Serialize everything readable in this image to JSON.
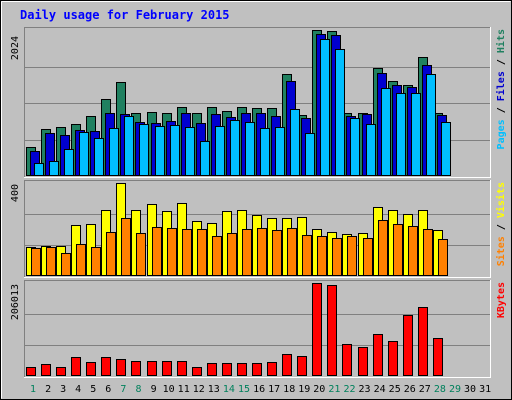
{
  "chart_data": {
    "type": "bar",
    "title": "Daily usage for February 2015",
    "categories": [
      "1",
      "2",
      "3",
      "4",
      "5",
      "6",
      "7",
      "8",
      "9",
      "10",
      "11",
      "12",
      "13",
      "14",
      "15",
      "16",
      "17",
      "18",
      "19",
      "20",
      "21",
      "22",
      "23",
      "24",
      "25",
      "26",
      "27",
      "28",
      "29",
      "30",
      "31"
    ],
    "panels": [
      {
        "id": "top",
        "max_label": "2024",
        "ymax": 2024,
        "right_labels": [
          {
            "text": "Pages",
            "color": "#00bfff"
          },
          {
            "text": " / ",
            "color": "#000000"
          },
          {
            "text": "Files",
            "color": "#0000d0"
          },
          {
            "text": " / ",
            "color": "#000000"
          },
          {
            "text": "Hits",
            "color": "#208060"
          }
        ],
        "series": [
          {
            "name": "Hits",
            "color": "#208060",
            "values": [
              403,
              652,
              674,
              720,
              837,
              1063,
              1309,
              877,
              891,
              867,
              961,
              880,
              963,
              904,
              961,
              941,
              947,
              1418,
              843,
              2024,
              2007,
              880,
              869,
              1493,
              1315,
              1264,
              1654,
              867,
              0,
              0,
              0
            ]
          },
          {
            "name": "Files",
            "color": "#0000d0",
            "values": [
              352,
              600,
              566,
              634,
              623,
              873,
              855,
              752,
              735,
              760,
              867,
              741,
              864,
              818,
              870,
              873,
              837,
              1320,
              801,
              1975,
              1950,
              829,
              856,
              1424,
              1257,
              1233,
              1533,
              849,
              0,
              0,
              0
            ]
          },
          {
            "name": "Pages",
            "color": "#00bfff",
            "values": [
              174,
              204,
              369,
              615,
              531,
              667,
              826,
              715,
              689,
              708,
              685,
              490,
              688,
              772,
              750,
              661,
              679,
              933,
              599,
              1894,
              1758,
              804,
              721,
              1220,
              1145,
              1144,
              1416,
              749,
              0,
              0,
              0
            ]
          }
        ]
      },
      {
        "id": "mid",
        "max_label": "400",
        "ymax": 400,
        "right_labels": [
          {
            "text": "Sites",
            "color": "#ff8000"
          },
          {
            "text": " / ",
            "color": "#000000"
          },
          {
            "text": "Visits",
            "color": "#ffff00"
          }
        ],
        "series": [
          {
            "name": "Visits",
            "color": "#ffff00",
            "values": [
              123,
              128,
              127,
              220,
              223,
              285,
              400,
              285,
              309,
              278,
              315,
              235,
              229,
              278,
              284,
              262,
              249,
              250,
              252,
              201,
              190,
              180,
              186,
              296,
              282,
              265,
              285,
              198,
              0,
              0,
              0
            ]
          },
          {
            "name": "Sites",
            "color": "#ff8000",
            "values": [
              122,
              126,
              100,
              136,
              126,
              189,
              248,
              183,
              210,
              206,
              204,
              202,
              172,
              184,
              200,
              208,
              198,
              206,
              176,
              172,
              162,
              174,
              162,
              240,
              224,
              216,
              202,
              158,
              0,
              0,
              0
            ]
          }
        ]
      },
      {
        "id": "bot",
        "max_label": "206013",
        "ymax": 206013,
        "right_labels": [
          {
            "text": "KBytes",
            "color": "#ff0000"
          }
        ],
        "series": [
          {
            "name": "KBytes",
            "color": "#ff0000",
            "values": [
              20600,
              26000,
              20600,
              42200,
              32000,
              41200,
              37000,
              33000,
              32900,
              32900,
              32900,
              20600,
              28300,
              28300,
              28300,
              28300,
              30900,
              48400,
              44300,
              206013,
              202000,
              70000,
              63800,
              92700,
              77200,
              136000,
              152500,
              83400,
              0,
              0,
              0
            ]
          }
        ]
      }
    ],
    "day_label_colors": {
      "weekday": "#000000",
      "weekend": "#00805c"
    },
    "weekend_days": [
      1,
      7,
      8,
      14,
      15,
      21,
      22,
      28,
      29
    ]
  }
}
